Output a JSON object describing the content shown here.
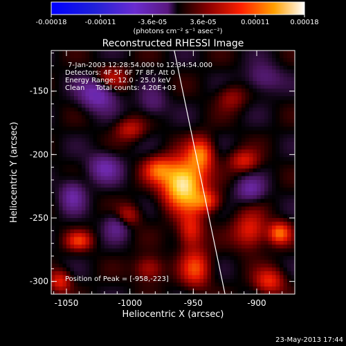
{
  "colorbar": {
    "ticks": [
      "-0.00018",
      "-0.00011",
      "-3.6e-05",
      "3.6e-05",
      "0.00011",
      "0.00018"
    ],
    "units": "(photons cm⁻² s⁻¹ asec⁻²)",
    "range": [
      -0.00018,
      0.00018
    ]
  },
  "chart_data": {
    "type": "heatmap",
    "title": "Reconstructed RHESSI Image",
    "xlabel": "Heliocentric X (arcsec)",
    "ylabel": "Heliocentric Y (arcsec)",
    "xlim": [
      -1062,
      -870
    ],
    "ylim": [
      -310,
      -118
    ],
    "x_ticks": [
      "-1050",
      "-1000",
      "-950",
      "-900"
    ],
    "x_tick_values": [
      -1050,
      -1000,
      -950,
      -900
    ],
    "y_ticks": [
      "-150",
      "-200",
      "-250",
      "-300"
    ],
    "y_tick_values": [
      -150,
      -200,
      -250,
      -300
    ],
    "annotations": [
      "7-Jan-2003 12:28:54.000 to 12:34:54.000",
      "Detectors: 4F 5F 6F 7F 8F, Att 0",
      "Energy Range: 12.0 - 25.0 keV",
      "Clean     Total counts: 4.20E+03"
    ],
    "peak_label": "Position of Peak = [-958,-223]",
    "peak": [
      -958,
      -223
    ],
    "limb_line": [
      [
        -965,
        -118
      ],
      [
        -925,
        -310
      ]
    ],
    "sources": [
      {
        "x": -958,
        "y": -223,
        "amp": 1.0,
        "sx": 11,
        "sy": 13
      },
      {
        "x": -944,
        "y": -200,
        "amp": 0.55,
        "sx": 7,
        "sy": 9
      },
      {
        "x": -978,
        "y": -212,
        "amp": 0.45,
        "sx": 8,
        "sy": 7
      },
      {
        "x": -940,
        "y": -237,
        "amp": 0.42,
        "sx": 8,
        "sy": 6
      },
      {
        "x": -952,
        "y": -260,
        "amp": 0.4,
        "sx": 7,
        "sy": 10
      },
      {
        "x": -948,
        "y": -290,
        "amp": 0.45,
        "sx": 8,
        "sy": 10
      },
      {
        "x": -905,
        "y": -260,
        "amp": 0.4,
        "sx": 9,
        "sy": 10
      },
      {
        "x": -882,
        "y": -262,
        "amp": 0.55,
        "sx": 6,
        "sy": 6
      },
      {
        "x": -890,
        "y": -300,
        "amp": 0.4,
        "sx": 8,
        "sy": 7
      },
      {
        "x": -910,
        "y": -205,
        "amp": 0.35,
        "sx": 8,
        "sy": 6
      },
      {
        "x": -1015,
        "y": -140,
        "amp": 0.3,
        "sx": 9,
        "sy": 7
      },
      {
        "x": -1000,
        "y": -180,
        "amp": 0.3,
        "sx": 8,
        "sy": 6
      },
      {
        "x": -1040,
        "y": -268,
        "amp": 0.4,
        "sx": 7,
        "sy": 5
      },
      {
        "x": -1002,
        "y": -248,
        "amp": 0.3,
        "sx": 7,
        "sy": 6
      },
      {
        "x": -985,
        "y": -290,
        "amp": 0.3,
        "sx": 8,
        "sy": 7
      },
      {
        "x": -1055,
        "y": -300,
        "amp": 0.38,
        "sx": 6,
        "sy": 6
      },
      {
        "x": -920,
        "y": -155,
        "amp": 0.22,
        "sx": 8,
        "sy": 7
      },
      {
        "x": -1025,
        "y": -152,
        "amp": -0.4,
        "sx": 10,
        "sy": 9
      },
      {
        "x": -1020,
        "y": -210,
        "amp": -0.3,
        "sx": 9,
        "sy": 8
      },
      {
        "x": -1045,
        "y": -232,
        "amp": -0.28,
        "sx": 7,
        "sy": 9
      },
      {
        "x": -1010,
        "y": -255,
        "amp": -0.25,
        "sx": 7,
        "sy": 8
      },
      {
        "x": -905,
        "y": -228,
        "amp": -0.28,
        "sx": 8,
        "sy": 7
      },
      {
        "x": -895,
        "y": -140,
        "amp": -0.22,
        "sx": 10,
        "sy": 8
      },
      {
        "x": -982,
        "y": -160,
        "amp": -0.18,
        "sx": 8,
        "sy": 8
      }
    ]
  },
  "footer": {
    "date": "23-May-2013 17:44"
  }
}
